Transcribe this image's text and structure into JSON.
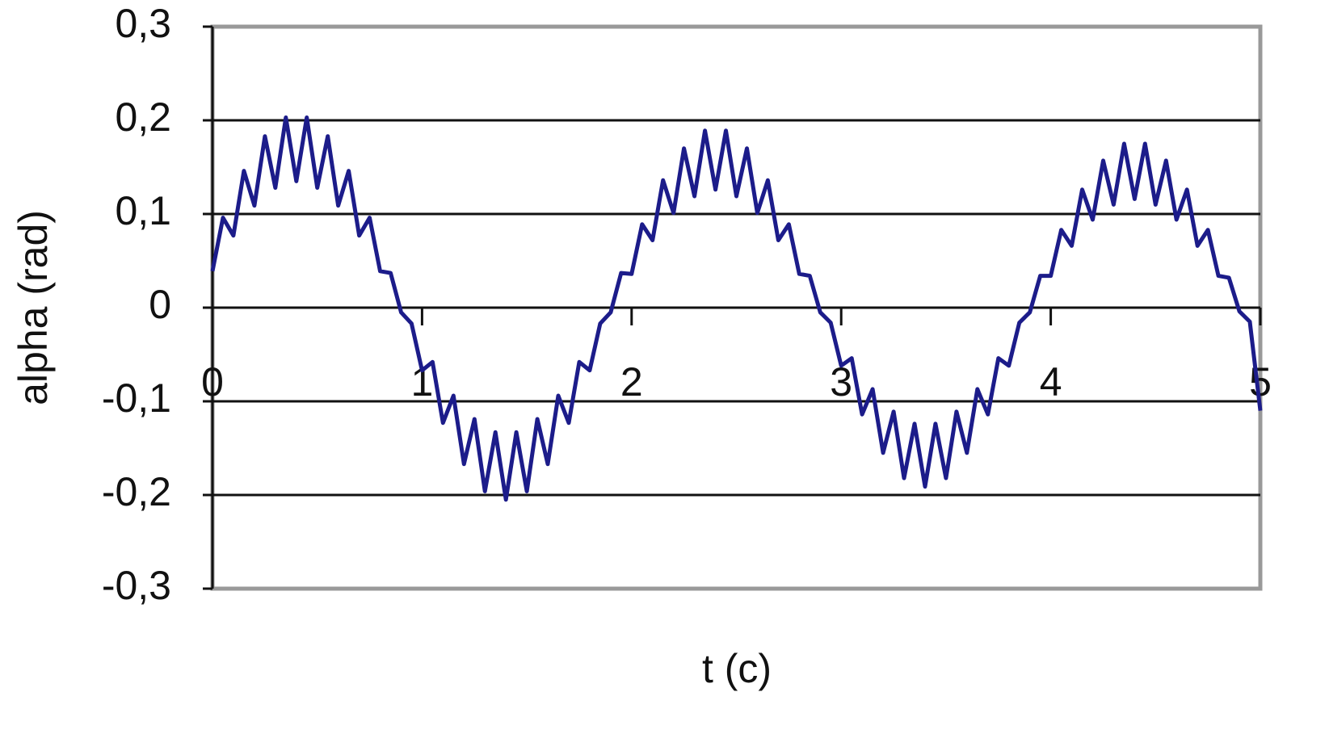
{
  "chart_data": {
    "type": "line",
    "xlabel": "t (c)",
    "ylabel": "alpha (rad)",
    "x": [
      0,
      0.05,
      0.1,
      0.15,
      0.2,
      0.25,
      0.3,
      0.35,
      0.4,
      0.45,
      0.5,
      0.55,
      0.6,
      0.65,
      0.7,
      0.75,
      0.8,
      0.85,
      0.9,
      0.95,
      1,
      1.05,
      1.1,
      1.15,
      1.2,
      1.25,
      1.3,
      1.35,
      1.4,
      1.45,
      1.5,
      1.55,
      1.6,
      1.65,
      1.7,
      1.75,
      1.8,
      1.85,
      1.9,
      1.95,
      2,
      2.05,
      2.1,
      2.15,
      2.2,
      2.25,
      2.3,
      2.35,
      2.4,
      2.45,
      2.5,
      2.55,
      2.6,
      2.65,
      2.7,
      2.75,
      2.8,
      2.85,
      2.9,
      2.95,
      3,
      3.05,
      3.1,
      3.15,
      3.2,
      3.25,
      3.3,
      3.35,
      3.4,
      3.45,
      3.5,
      3.55,
      3.6,
      3.65,
      3.7,
      3.75,
      3.8,
      3.85,
      3.9,
      3.95,
      4,
      4.05,
      4.1,
      4.15,
      4.2,
      4.25,
      4.3,
      4.35,
      4.4,
      4.45,
      4.5,
      4.55,
      4.6,
      4.65,
      4.7,
      4.75,
      4.8,
      4.85,
      4.9,
      4.95,
      5
    ],
    "series": [
      {
        "color": "#1c1c8a",
        "values": [
          0.039,
          0.096,
          0.077,
          0.146,
          0.109,
          0.183,
          0.128,
          0.203,
          0.135,
          0.203,
          0.128,
          0.183,
          0.109,
          0.146,
          0.077,
          0.096,
          0.039,
          0.037,
          -0.005,
          -0.017,
          -0.067,
          -0.058,
          -0.123,
          -0.094,
          -0.167,
          -0.119,
          -0.196,
          -0.133,
          -0.205,
          -0.133,
          -0.196,
          -0.119,
          -0.167,
          -0.094,
          -0.123,
          -0.058,
          -0.067,
          -0.017,
          -0.005,
          0.037,
          0.036,
          0.089,
          0.072,
          0.136,
          0.101,
          0.17,
          0.119,
          0.189,
          0.126,
          0.189,
          0.119,
          0.17,
          0.101,
          0.136,
          0.072,
          0.089,
          0.036,
          0.034,
          -0.005,
          -0.016,
          -0.062,
          -0.054,
          -0.114,
          -0.087,
          -0.155,
          -0.111,
          -0.182,
          -0.124,
          -0.191,
          -0.124,
          -0.182,
          -0.111,
          -0.155,
          -0.087,
          -0.114,
          -0.054,
          -0.062,
          -0.016,
          -0.005,
          0.034,
          0.034,
          0.083,
          0.066,
          0.126,
          0.094,
          0.157,
          0.11,
          0.175,
          0.116,
          0.175,
          0.11,
          0.157,
          0.094,
          0.126,
          0.066,
          0.083,
          0.034,
          0.032,
          -0.004,
          -0.015,
          -0.11
        ]
      }
    ],
    "xlim": [
      0,
      5
    ],
    "xticks": [
      0,
      1,
      2,
      3,
      4,
      5
    ],
    "ylim": [
      -0.3,
      0.3
    ],
    "yticks": [
      {
        "value": -0.3,
        "label": "-0,3"
      },
      {
        "value": -0.2,
        "label": "-0,2"
      },
      {
        "value": -0.1,
        "label": "-0,1"
      },
      0,
      {
        "value": 0.1,
        "label": "0,1"
      },
      {
        "value": 0.2,
        "label": "0,2"
      },
      {
        "value": 0.3,
        "label": "0,3"
      }
    ],
    "grid": true
  }
}
